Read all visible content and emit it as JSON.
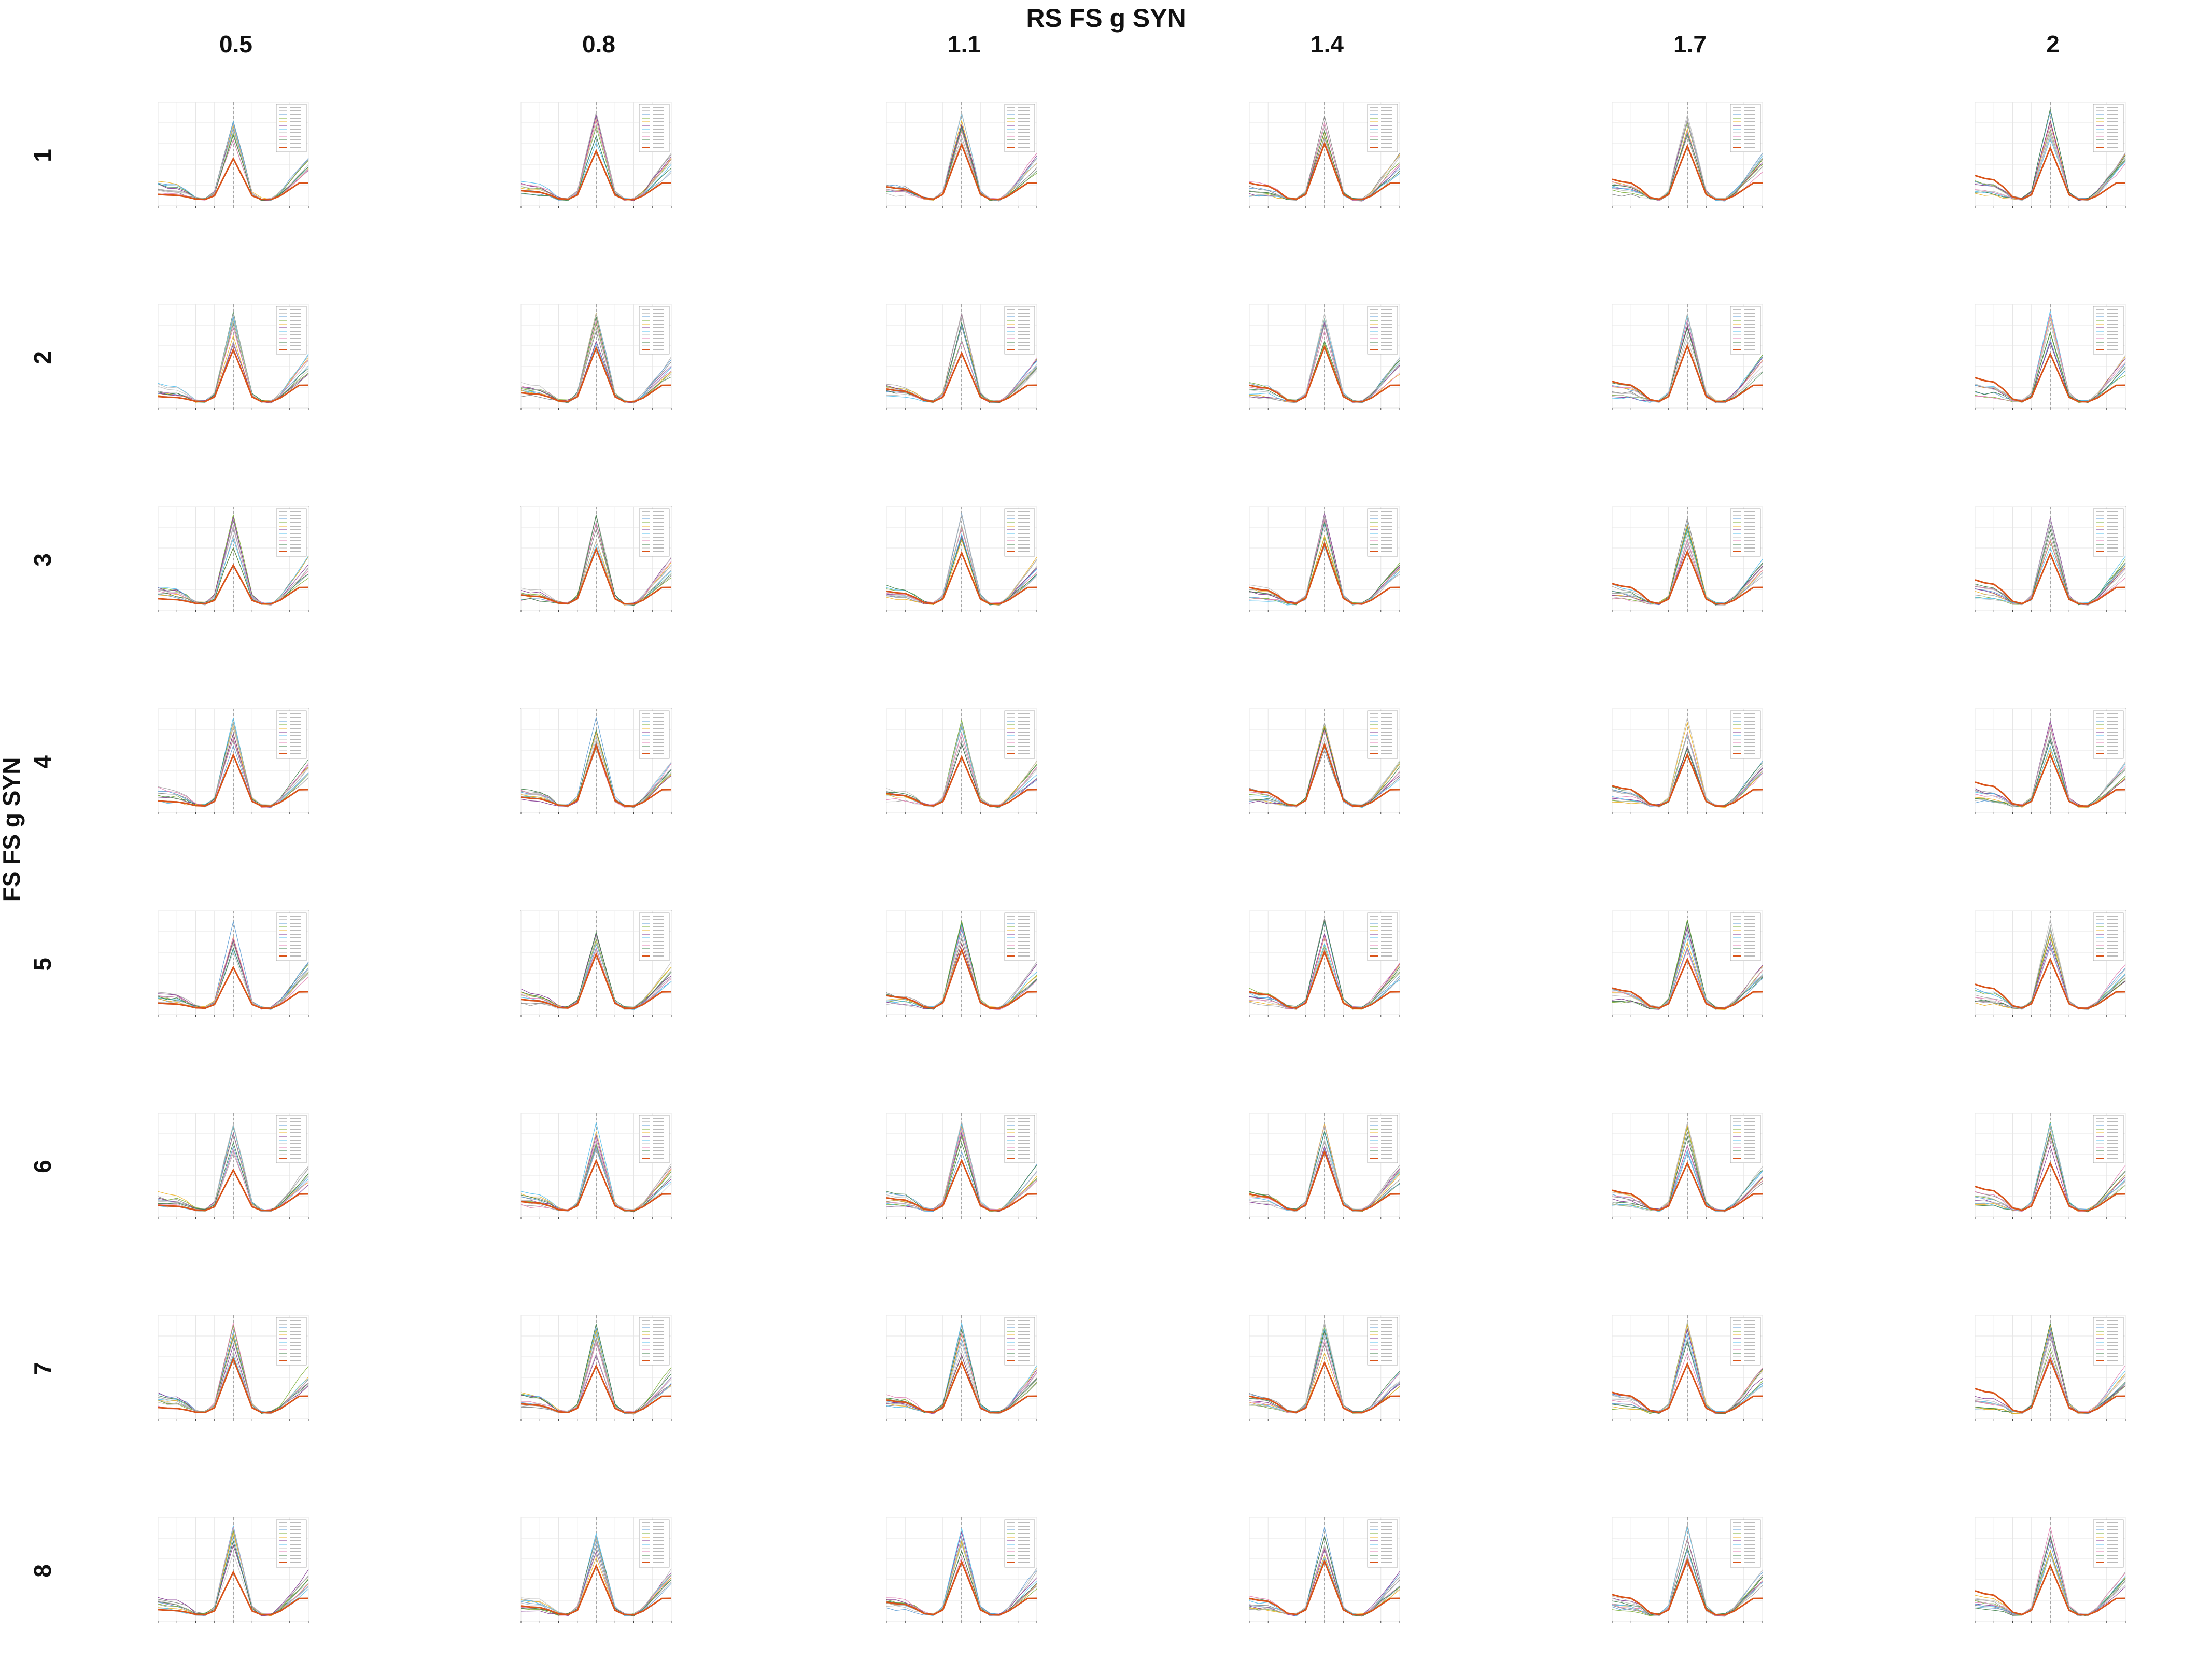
{
  "figure": {
    "column_title": "RS FS g SYN",
    "row_title": "FS FS g SYN",
    "columns": [
      "0.5",
      "0.8",
      "1.1",
      "1.4",
      "1.7",
      "2"
    ],
    "rows": [
      "1",
      "2",
      "3",
      "4",
      "5",
      "6",
      "7",
      "8"
    ]
  },
  "colors": {
    "mean_trace": "#d95319",
    "trace_palette": [
      "#7f7f7f",
      "#a2a2a2",
      "#5a9bd4",
      "#77ac30",
      "#edb120",
      "#7e2f8e",
      "#4dbeee",
      "#c0c0c0",
      "#e07bb0",
      "#3a7d44",
      "#bbbbbb",
      "#999999"
    ],
    "grid": "#e6e6e6",
    "axis": "#444444",
    "peak_marker": "#888888"
  },
  "chart_data": {
    "type": "line",
    "grid": true,
    "legend_position": "top-right",
    "panel_count": 48,
    "layout": "8 rows x 6 columns small multiples",
    "x": [
      0,
      5,
      10,
      15,
      20,
      25,
      30,
      35,
      40,
      45,
      50,
      55,
      60,
      65,
      70,
      75,
      80
    ],
    "xlim": [
      0,
      80
    ],
    "ylim": [
      0,
      1
    ],
    "peak_x": 40,
    "series_shape_note": "per-cell spectra peaking near x=40 with a rise toward x=80; thick line is the mean"
  }
}
